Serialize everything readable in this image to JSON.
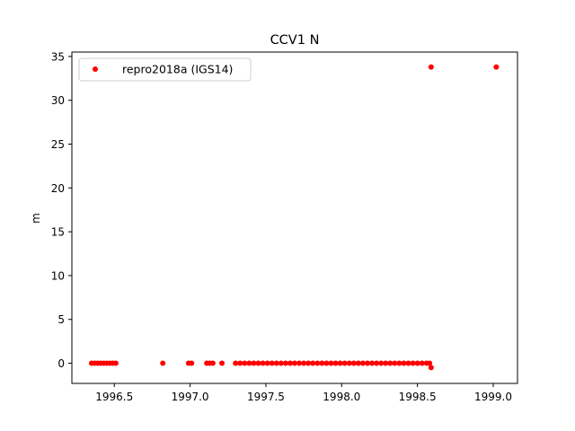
{
  "chart_data": {
    "type": "scatter",
    "title": "CCV1 N",
    "xlabel": "",
    "ylabel": "m",
    "xlim": [
      1996.22,
      1999.16
    ],
    "ylim": [
      -2.3,
      35.5
    ],
    "x_ticks": [
      1996.5,
      1997.0,
      1997.5,
      1998.0,
      1998.5,
      1999.0
    ],
    "x_tick_labels": [
      "1996.5",
      "1997.0",
      "1997.5",
      "1998.0",
      "1998.5",
      "1999.0"
    ],
    "y_ticks": [
      0,
      5,
      10,
      15,
      20,
      25,
      30,
      35
    ],
    "y_tick_labels": [
      "0",
      "5",
      "10",
      "15",
      "20",
      "25",
      "30",
      "35"
    ],
    "grid": false,
    "legend": {
      "placement": "upper-left",
      "entries": [
        "repro2018a (IGS14)"
      ]
    },
    "series": [
      {
        "name": "repro2018a (IGS14)",
        "color": "#ff0000",
        "marker": "circle",
        "points": [
          [
            1996.35,
            0.0
          ],
          [
            1996.37,
            0.0
          ],
          [
            1996.39,
            0.0
          ],
          [
            1996.41,
            0.0
          ],
          [
            1996.43,
            0.0
          ],
          [
            1996.45,
            0.0
          ],
          [
            1996.47,
            0.0
          ],
          [
            1996.49,
            0.0
          ],
          [
            1996.51,
            0.0
          ],
          [
            1996.82,
            0.0
          ],
          [
            1996.99,
            0.0
          ],
          [
            1997.01,
            0.0
          ],
          [
            1997.11,
            0.0
          ],
          [
            1997.13,
            0.0
          ],
          [
            1997.15,
            0.0
          ],
          [
            1997.21,
            0.0
          ],
          [
            1997.3,
            0.0
          ],
          [
            1997.33,
            0.0
          ],
          [
            1997.36,
            0.0
          ],
          [
            1997.39,
            0.0
          ],
          [
            1997.42,
            0.0
          ],
          [
            1997.45,
            0.0
          ],
          [
            1997.48,
            0.0
          ],
          [
            1997.51,
            0.0
          ],
          [
            1997.54,
            0.0
          ],
          [
            1997.57,
            0.0
          ],
          [
            1997.6,
            0.0
          ],
          [
            1997.63,
            0.0
          ],
          [
            1997.66,
            0.0
          ],
          [
            1997.69,
            0.0
          ],
          [
            1997.72,
            0.0
          ],
          [
            1997.75,
            0.0
          ],
          [
            1997.78,
            0.0
          ],
          [
            1997.81,
            0.0
          ],
          [
            1997.84,
            0.0
          ],
          [
            1997.87,
            0.0
          ],
          [
            1997.9,
            0.0
          ],
          [
            1997.93,
            0.0
          ],
          [
            1997.96,
            0.0
          ],
          [
            1997.99,
            0.0
          ],
          [
            1998.02,
            0.0
          ],
          [
            1998.05,
            0.0
          ],
          [
            1998.08,
            0.0
          ],
          [
            1998.11,
            0.0
          ],
          [
            1998.14,
            0.0
          ],
          [
            1998.17,
            0.0
          ],
          [
            1998.2,
            0.0
          ],
          [
            1998.23,
            0.0
          ],
          [
            1998.26,
            0.0
          ],
          [
            1998.29,
            0.0
          ],
          [
            1998.32,
            0.0
          ],
          [
            1998.35,
            0.0
          ],
          [
            1998.38,
            0.0
          ],
          [
            1998.41,
            0.0
          ],
          [
            1998.44,
            0.0
          ],
          [
            1998.47,
            0.0
          ],
          [
            1998.5,
            0.0
          ],
          [
            1998.53,
            0.0
          ],
          [
            1998.56,
            0.0
          ],
          [
            1998.58,
            0.0
          ],
          [
            1998.59,
            -0.5
          ],
          [
            1998.59,
            33.8
          ],
          [
            1999.02,
            33.8
          ]
        ]
      }
    ]
  }
}
